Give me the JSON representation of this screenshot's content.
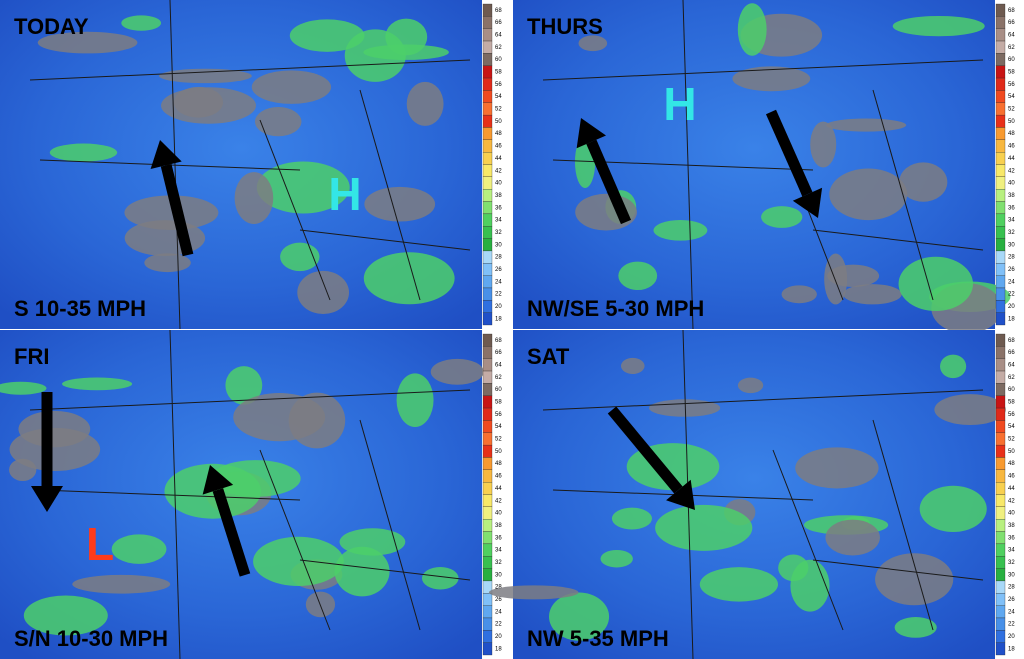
{
  "panels": [
    {
      "day": "TODAY",
      "wind": "S 10-35 MPH",
      "pressure": "H"
    },
    {
      "day": "THURS",
      "wind": "NW/SE 5-30 MPH",
      "pressure": "H"
    },
    {
      "day": "FRI",
      "wind": "S/N 10-30 MPH",
      "pressure": "L"
    },
    {
      "day": "SAT",
      "wind": "NW 5-35 MPH"
    }
  ],
  "colorbar": {
    "ticks": [
      68,
      66,
      64,
      62,
      60,
      58,
      56,
      54,
      52,
      50,
      48,
      46,
      44,
      42,
      40,
      38,
      36,
      34,
      32,
      30,
      28,
      26,
      24,
      22,
      20,
      18
    ]
  }
}
